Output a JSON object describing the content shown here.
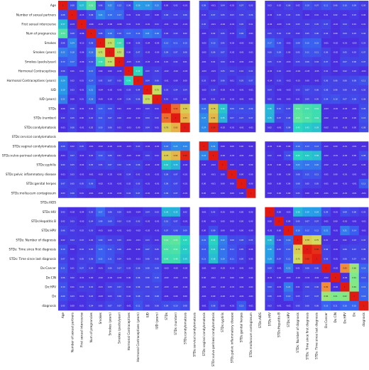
{
  "chart_data": {
    "type": "heatmap",
    "title": "",
    "xlabel": "",
    "ylabel": "",
    "colormap": "rainbow",
    "color_range": [
      0,
      1
    ],
    "blank_rows_cols": [
      "STDs:cervical condylomatosis",
      "STDs:AIDS"
    ],
    "colors": {
      "low": "#4a2fe0",
      "high": "#e01a12",
      "background": "#ffffff"
    },
    "labels": [
      "Age",
      "Number of sexual partners",
      "First sexual intercourse",
      "Num of pregnancies",
      "Smokes",
      "Smokes (years)",
      "Smokes (packs/year)",
      "Hormonal Contraceptives",
      "Hormonal Contraceptives (years)",
      "IUD",
      "IUD (years)",
      "STDs",
      "STDs (number)",
      "STDs:condylomatosis",
      "STDs:cervical condylomatosis",
      "STDs:vaginal condylomatosis",
      "STDs:vulvo-perineal condylomatosis",
      "STDs:syphilis",
      "STDs:pelvic inflammatory disease",
      "STDs:genital herpes",
      "STDs:molluscum contagiosum",
      "STDs:AIDS",
      "STDs:HIV",
      "STDs:Hepatitis B",
      "STDs:HPV",
      "STDs: Number of diagnosis",
      "STDs: Time since first diagnosis",
      "STDs: Time since last diagnosis",
      "Dx:Cancer",
      "Dx:CIN",
      "Dx:HPV",
      "Dx",
      "diagnosis"
    ],
    "matrix": [
      [
        1,
        0.08,
        0.37,
        0.53,
        0.06,
        0.22,
        0.13,
        0.06,
        0.29,
        0.28,
        0.22,
        -0.0,
        0.02,
        -0.01,
        null,
        0.08,
        -0.01,
        0.04,
        -0.01,
        0.07,
        0.03,
        null,
        0.03,
        0.02,
        0.06,
        0.02,
        0.1,
        0.07,
        0.11,
        0.06,
        0.1,
        0.09,
        0.05
      ],
      [
        0.08,
        1,
        -0.15,
        0.08,
        0.24,
        0.18,
        0.17,
        0.01,
        0.02,
        0.03,
        0.0,
        0.06,
        0.05,
        0.06,
        null,
        0.02,
        0.07,
        0.05,
        0.03,
        0.05,
        0.06,
        null,
        -0.02,
        0.03,
        0.03,
        0.04,
        0.0,
        0.01,
        0.01,
        0.02,
        0.01,
        0.03,
        -0.0
      ],
      [
        0.37,
        -0.15,
        1,
        -0.06,
        -0.13,
        -0.06,
        -0.06,
        0.01,
        0.01,
        -0.01,
        0.01,
        -0.01,
        -0.0,
        -0.01,
        null,
        0.05,
        -0.01,
        -0.04,
        -0.01,
        0.05,
        0.01,
        null,
        -0.04,
        -0.03,
        0.02,
        0.03,
        0.04,
        0.05,
        0.07,
        -0.01,
        0.04,
        0.01,
        0.01
      ],
      [
        0.53,
        0.08,
        -0.06,
        1,
        0.08,
        0.18,
        0.1,
        0.15,
        0.14,
        0.21,
        0.18,
        0.02,
        0.03,
        0.02,
        null,
        -0.01,
        0.02,
        0.05,
        -0.01,
        0.09,
        -0.01,
        null,
        0.05,
        0.04,
        0.03,
        0.02,
        0.05,
        0.06,
        0.04,
        0.0,
        0.04,
        0.03,
        0.04
      ],
      [
        0.06,
        0.24,
        -0.13,
        0.08,
        1,
        0.72,
        0.49,
        0.0,
        0.05,
        -0.04,
        -0.05,
        0.13,
        0.11,
        0.1,
        null,
        -0.02,
        0.1,
        0.05,
        -0.02,
        -0.02,
        -0.02,
        null,
        0.17,
        0.09,
        -0.01,
        0.09,
        0.15,
        0.15,
        -0.01,
        -0.02,
        -0.01,
        -0.03,
        0.03
      ],
      [
        0.22,
        0.18,
        -0.06,
        0.18,
        0.72,
        1,
        0.72,
        -0.0,
        0.07,
        -0.02,
        -0.03,
        0.09,
        0.07,
        0.06,
        null,
        -0.02,
        0.06,
        0.07,
        -0.02,
        -0.01,
        -0.01,
        null,
        0.06,
        0.09,
        -0.0,
        0.05,
        0.11,
        0.11,
        0.06,
        -0.02,
        0.05,
        0.03,
        0.07
      ],
      [
        0.13,
        0.17,
        -0.06,
        0.1,
        0.49,
        0.72,
        1,
        -0.03,
        0.03,
        -0.03,
        -0.04,
        0.01,
        0.02,
        0.01,
        null,
        -0.01,
        0.01,
        0.04,
        -0.01,
        -0.01,
        -0.01,
        null,
        0.05,
        0.03,
        -0.01,
        0.05,
        0.06,
        0.04,
        0.07,
        -0.01,
        0.07,
        0.06,
        0.07
      ],
      [
        0.06,
        0.01,
        0.01,
        0.15,
        0.0,
        -0.0,
        -0.03,
        1,
        0.45,
        0.03,
        0.05,
        -0.02,
        -0.02,
        -0.03,
        null,
        -0.03,
        -0.03,
        0.05,
        0.04,
        0.02,
        0.04,
        null,
        -0.05,
        0.02,
        -0.02,
        -0.04,
        -0.05,
        -0.05,
        0.02,
        0.0,
        0.02,
        0.02,
        -0.01
      ],
      [
        0.29,
        0.02,
        0.01,
        0.14,
        0.05,
        0.07,
        0.03,
        0.45,
        1,
        0.04,
        0.06,
        -0.01,
        0.0,
        -0.0,
        null,
        0.03,
        0.0,
        0.06,
        0.01,
        0.05,
        0.07,
        null,
        -0.04,
        0.03,
        -0.02,
        -0.01,
        0.0,
        -0.01,
        0.06,
        0.06,
        0.06,
        0.08,
        0.11
      ],
      [
        0.28,
        0.03,
        -0.01,
        0.21,
        -0.04,
        -0.02,
        -0.03,
        0.03,
        0.04,
        1,
        0.73,
        0.03,
        0.04,
        0.04,
        null,
        -0.02,
        0.04,
        -0.03,
        -0.01,
        -0.01,
        -0.01,
        null,
        0.04,
        -0.02,
        -0.02,
        0.03,
        0.07,
        0.06,
        0.08,
        0.06,
        0.06,
        0.06,
        0.05
      ],
      [
        0.22,
        0.0,
        0.01,
        0.18,
        -0.05,
        -0.03,
        -0.04,
        0.05,
        0.06,
        0.73,
        1,
        0.01,
        0.02,
        0.01,
        null,
        -0.01,
        0.01,
        -0.02,
        -0.01,
        -0.01,
        -0.01,
        null,
        0.03,
        -0.01,
        -0.01,
        0.01,
        0.05,
        0.05,
        0.09,
        0.1,
        0.07,
        0.08,
        0.06
      ],
      [
        -0.0,
        0.06,
        -0.01,
        0.02,
        0.13,
        0.09,
        0.01,
        -0.02,
        -0.01,
        0.03,
        0.01,
        1,
        0.92,
        0.78,
        null,
        0.18,
        0.78,
        0.4,
        0.09,
        0.09,
        0.09,
        null,
        0.36,
        0.1,
        0.07,
        0.54,
        0.51,
        0.49,
        -0.03,
        -0.02,
        -0.03,
        -0.01,
        0.09
      ],
      [
        0.02,
        0.05,
        -0.0,
        0.03,
        0.11,
        0.07,
        0.02,
        -0.02,
        0.0,
        0.04,
        0.02,
        0.92,
        1,
        0.83,
        null,
        0.25,
        0.82,
        0.35,
        0.07,
        0.07,
        0.07,
        null,
        0.35,
        0.07,
        0.08,
        0.55,
        0.52,
        0.49,
        -0.02,
        -0.02,
        -0.02,
        -0.0,
        0.1
      ],
      [
        -0.01,
        0.06,
        -0.01,
        0.02,
        0.1,
        0.06,
        0.01,
        -0.03,
        -0.0,
        0.04,
        0.01,
        0.78,
        0.83,
        1,
        null,
        0.24,
        0.99,
        -0.02,
        -0.01,
        -0.01,
        -0.01,
        null,
        0.02,
        -0.01,
        0.09,
        0.45,
        0.42,
        0.39,
        -0.02,
        -0.01,
        -0.02,
        0.0,
        0.08
      ],
      [
        null,
        null,
        null,
        null,
        null,
        null,
        null,
        null,
        null,
        null,
        null,
        null,
        null,
        null,
        null,
        null,
        null,
        null,
        null,
        null,
        null,
        null,
        null,
        null,
        null,
        null,
        null,
        null,
        null,
        null,
        null,
        null,
        null
      ],
      [
        0.08,
        0.02,
        0.05,
        -0.01,
        -0.02,
        -0.02,
        -0.01,
        -0.03,
        0.03,
        -0.02,
        -0.01,
        0.18,
        0.25,
        0.24,
        null,
        1,
        0.24,
        -0.0,
        -0.0,
        -0.0,
        -0.0,
        null,
        -0.01,
        -0.0,
        -0.0,
        0.16,
        0.13,
        0.13,
        -0.01,
        -0.0,
        -0.01,
        -0.01,
        -0.01
      ],
      [
        -0.01,
        0.07,
        -0.01,
        0.02,
        0.1,
        0.06,
        0.01,
        -0.03,
        0.0,
        0.04,
        0.01,
        0.78,
        0.82,
        0.99,
        null,
        0.24,
        1,
        -0.02,
        -0.01,
        -0.01,
        -0.01,
        null,
        0.02,
        -0.01,
        0.09,
        0.44,
        0.41,
        0.38,
        -0.02,
        -0.01,
        -0.02,
        0.0,
        0.08
      ],
      [
        0.04,
        0.05,
        -0.04,
        0.05,
        0.05,
        0.07,
        0.04,
        0.05,
        0.06,
        -0.03,
        -0.02,
        0.4,
        0.35,
        -0.02,
        null,
        -0.0,
        -0.02,
        1,
        -0.0,
        -0.0,
        -0.0,
        null,
        -0.01,
        -0.0,
        -0.0,
        0.22,
        0.2,
        0.2,
        -0.02,
        -0.01,
        -0.02,
        -0.02,
        0.0
      ],
      [
        -0.01,
        0.03,
        -0.01,
        -0.01,
        -0.02,
        -0.02,
        -0.01,
        0.04,
        0.01,
        -0.01,
        -0.01,
        0.09,
        0.07,
        -0.01,
        null,
        -0.0,
        -0.01,
        -0.0,
        1,
        -0.0,
        -0.0,
        null,
        -0.0,
        -0.0,
        -0.0,
        0.08,
        0.11,
        0.11,
        -0.01,
        -0.0,
        -0.01,
        -0.01,
        -0.01
      ],
      [
        0.07,
        0.05,
        0.05,
        0.09,
        -0.02,
        -0.01,
        -0.01,
        0.02,
        0.05,
        -0.01,
        -0.01,
        0.09,
        0.07,
        -0.01,
        null,
        -0.0,
        -0.01,
        -0.0,
        -0.0,
        1,
        -0.0,
        null,
        -0.0,
        -0.0,
        -0.0,
        0.08,
        0.05,
        0.05,
        -0.01,
        -0.0,
        -0.01,
        -0.01,
        0.13
      ],
      [
        0.03,
        0.06,
        0.01,
        -0.01,
        -0.02,
        -0.01,
        -0.01,
        0.04,
        0.07,
        -0.01,
        -0.01,
        0.09,
        0.07,
        -0.01,
        null,
        -0.0,
        -0.01,
        -0.0,
        -0.0,
        -0.0,
        1,
        null,
        -0.0,
        -0.0,
        -0.0,
        0.05,
        0.0,
        0.0,
        -0.01,
        -0.0,
        -0.01,
        -0.01,
        -0.01
      ],
      [
        null,
        null,
        null,
        null,
        null,
        null,
        null,
        null,
        null,
        null,
        null,
        null,
        null,
        null,
        null,
        null,
        null,
        null,
        null,
        null,
        null,
        null,
        null,
        null,
        null,
        null,
        null,
        null,
        null,
        null,
        null,
        null,
        null
      ],
      [
        0.03,
        -0.02,
        -0.04,
        0.05,
        0.17,
        0.06,
        0.05,
        -0.05,
        -0.04,
        0.04,
        0.03,
        0.36,
        0.35,
        0.02,
        null,
        -0.01,
        0.02,
        -0.01,
        -0.0,
        -0.0,
        -0.0,
        null,
        1,
        -0.0,
        -0.01,
        0.36,
        0.3,
        0.29,
        0.09,
        -0.01,
        0.09,
        0.06,
        0.03
      ],
      [
        0.02,
        0.03,
        -0.03,
        0.04,
        0.09,
        0.09,
        0.03,
        0.02,
        0.03,
        -0.02,
        -0.01,
        0.1,
        0.07,
        -0.01,
        null,
        -0.0,
        -0.01,
        -0.0,
        -0.0,
        -0.0,
        -0.0,
        null,
        -0.0,
        1,
        -0.0,
        0.06,
        0.07,
        0.07,
        -0.01,
        -0.0,
        -0.01,
        -0.01,
        -0.01
      ],
      [
        0.06,
        0.03,
        0.02,
        0.03,
        -0.01,
        -0.0,
        -0.01,
        -0.02,
        -0.02,
        -0.02,
        -0.01,
        0.07,
        0.08,
        0.09,
        null,
        -0.0,
        0.09,
        -0.0,
        -0.0,
        -0.0,
        -0.0,
        null,
        -0.01,
        -0.0,
        1,
        0.16,
        0.12,
        0.12,
        0.21,
        -0.01,
        0.21,
        0.14,
        -0.01
      ],
      [
        0.02,
        0.04,
        0.03,
        0.02,
        0.09,
        0.05,
        0.05,
        -0.04,
        -0.01,
        0.03,
        0.01,
        0.54,
        0.55,
        0.45,
        null,
        0.16,
        0.44,
        0.22,
        0.08,
        0.08,
        0.05,
        null,
        0.36,
        0.06,
        0.16,
        1,
        0.78,
        0.75,
        0.01,
        -0.02,
        0.01,
        0.03,
        0.05
      ],
      [
        0.1,
        0.0,
        0.04,
        0.05,
        0.15,
        0.11,
        0.06,
        -0.05,
        0.0,
        0.07,
        0.05,
        0.51,
        0.52,
        0.42,
        null,
        0.13,
        0.41,
        0.2,
        0.11,
        0.05,
        0.0,
        null,
        0.3,
        0.07,
        0.12,
        0.78,
        1,
        0.98,
        0.06,
        -0.01,
        0.06,
        0.07,
        0.06
      ],
      [
        0.07,
        0.01,
        0.05,
        0.06,
        0.15,
        0.11,
        0.04,
        -0.05,
        -0.01,
        0.06,
        0.05,
        0.49,
        0.49,
        0.39,
        null,
        0.13,
        0.38,
        0.2,
        0.11,
        0.05,
        0.0,
        null,
        0.29,
        0.07,
        0.12,
        0.75,
        0.98,
        1,
        0.06,
        -0.01,
        0.06,
        0.07,
        0.06
      ],
      [
        0.11,
        0.01,
        0.07,
        0.04,
        -0.01,
        0.06,
        0.07,
        0.02,
        0.06,
        0.08,
        0.09,
        -0.03,
        -0.02,
        -0.02,
        null,
        -0.01,
        -0.02,
        -0.02,
        -0.01,
        -0.01,
        -0.01,
        null,
        0.09,
        -0.01,
        0.21,
        0.01,
        0.06,
        0.06,
        1,
        -0.02,
        0.89,
        0.66,
        0.16
      ],
      [
        0.06,
        0.02,
        -0.01,
        0.0,
        -0.02,
        -0.02,
        -0.01,
        0.0,
        0.06,
        0.06,
        0.1,
        -0.02,
        -0.02,
        -0.01,
        null,
        -0.0,
        -0.01,
        -0.01,
        -0.0,
        -0.0,
        -0.0,
        null,
        -0.01,
        -0.0,
        -0.01,
        -0.02,
        -0.01,
        -0.01,
        -0.02,
        1,
        -0.02,
        0.61,
        0.11
      ],
      [
        0.1,
        0.01,
        0.04,
        0.04,
        -0.01,
        0.05,
        0.07,
        0.02,
        0.06,
        0.06,
        0.07,
        -0.03,
        -0.02,
        -0.02,
        null,
        -0.01,
        -0.02,
        -0.02,
        -0.01,
        -0.01,
        -0.01,
        null,
        0.09,
        -0.01,
        0.21,
        0.01,
        0.06,
        0.06,
        0.89,
        -0.02,
        1,
        0.62,
        0.16
      ],
      [
        0.09,
        0.03,
        0.01,
        0.03,
        -0.03,
        0.03,
        0.06,
        0.02,
        0.08,
        0.06,
        0.08,
        -0.01,
        -0.0,
        0.0,
        null,
        -0.01,
        0.0,
        -0.02,
        -0.01,
        -0.01,
        -0.01,
        null,
        0.06,
        -0.01,
        0.14,
        0.03,
        0.07,
        0.07,
        0.66,
        0.61,
        0.62,
        1,
        0.16
      ],
      [
        0.05,
        -0.0,
        0.01,
        0.04,
        0.03,
        0.07,
        0.07,
        -0.01,
        0.11,
        0.05,
        0.06,
        0.09,
        0.1,
        0.08,
        null,
        -0.01,
        0.08,
        0.0,
        -0.01,
        0.13,
        -0.01,
        null,
        0.03,
        -0.01,
        -0.01,
        0.05,
        0.06,
        0.06,
        0.16,
        0.11,
        0.16,
        0.16,
        1
      ]
    ]
  }
}
